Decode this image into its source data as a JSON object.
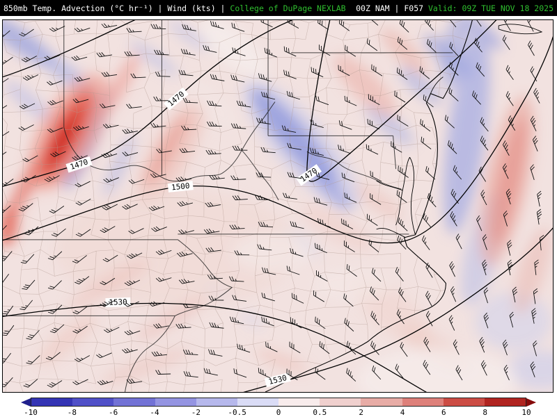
{
  "header": {
    "left_white": "850mb Temp. Advection (°C hr⁻¹) | Wind (kts) | ",
    "left_green": "College of DuPage NEXLAB",
    "right_white": "00Z NAM | F057 ",
    "right_green": "Valid: 09Z TUE NOV 18 2025"
  },
  "chart_data": {
    "type": "heatmap",
    "title": "850mb Temp. Advection (°C hr⁻¹) | Wind (kts)",
    "source": "College of DuPage NEXLAB",
    "model_run": "00Z NAM",
    "forecast_hour": "F057",
    "valid_time": "09Z TUE NOV 18 2025",
    "field_units": "°C hr⁻¹",
    "wind_units": "kts",
    "colorbar": {
      "tick_labels": [
        "-10",
        "-8",
        "-6",
        "-4",
        "-2",
        "-0.5",
        "0",
        "0.5",
        "2",
        "4",
        "6",
        "8",
        "10"
      ],
      "segment_colors": [
        "#3434b4",
        "#5050c8",
        "#7272d6",
        "#9494e2",
        "#b6b8ec",
        "#dadcf6",
        "#f8ecec",
        "#f0d0ce",
        "#e8aca6",
        "#de807a",
        "#cc4c44",
        "#b02420"
      ],
      "left_arrow_color": "#20208c",
      "right_arrow_color": "#860a0a"
    },
    "contour_labels": [
      {
        "label": "1470"
      },
      {
        "label": "1470"
      },
      {
        "label": "1470"
      },
      {
        "label": "1500"
      },
      {
        "label": "1530"
      },
      {
        "label": "1530"
      }
    ]
  }
}
